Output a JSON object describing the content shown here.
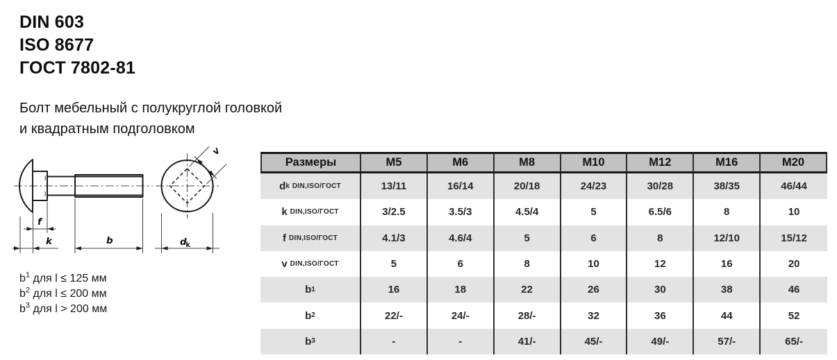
{
  "standards": [
    "DIN 603",
    "ISO 8677",
    "ГОСТ 7802-81"
  ],
  "title": {
    "line1": "Болт мебельный с полукруглой головкой",
    "line2": "и квадратным подголовком"
  },
  "drawing": {
    "labels": {
      "f": "f",
      "k": "k",
      "b": "b",
      "v": "v",
      "dk_main": "d",
      "dk_sub": "k"
    }
  },
  "footnotes": [
    {
      "base": "b",
      "sup": "1",
      "rest": " для l ≤ 125 мм"
    },
    {
      "base": "b",
      "sup": "2",
      "rest": " для l ≤ 200 мм"
    },
    {
      "base": "b",
      "sup": "3",
      "rest": " для l > 200 мм"
    }
  ],
  "table": {
    "header": [
      "Размеры",
      "M5",
      "M6",
      "M8",
      "M10",
      "M12",
      "M16",
      "M20"
    ],
    "rows": [
      {
        "label": {
          "main": "d",
          "sub": "k",
          "suffix": "DIN,ISO/ГОСТ"
        },
        "values": [
          "13/11",
          "16/14",
          "20/18",
          "24/23",
          "30/28",
          "38/35",
          "46/44"
        ]
      },
      {
        "label": {
          "main": "k",
          "sub": "",
          "suffix": "DIN,ISO/ГОСТ"
        },
        "values": [
          "3/2.5",
          "3.5/3",
          "4.5/4",
          "5",
          "6.5/6",
          "8",
          "10"
        ]
      },
      {
        "label": {
          "main": "f",
          "sub": "",
          "suffix": "DIN,ISO/ГОСТ"
        },
        "values": [
          "4.1/3",
          "4.6/4",
          "5",
          "6",
          "8",
          "12/10",
          "15/12"
        ]
      },
      {
        "label": {
          "main": "v",
          "sub": "",
          "suffix": "DIN,ISO/ГОСТ"
        },
        "values": [
          "5",
          "6",
          "8",
          "10",
          "12",
          "16",
          "20"
        ]
      },
      {
        "label": {
          "main": "b",
          "sub": "1",
          "suffix": ""
        },
        "values": [
          "16",
          "18",
          "22",
          "26",
          "30",
          "38",
          "46"
        ]
      },
      {
        "label": {
          "main": "b",
          "sub": "2",
          "suffix": ""
        },
        "values": [
          "22/-",
          "24/-",
          "28/-",
          "32",
          "36",
          "44",
          "52"
        ]
      },
      {
        "label": {
          "main": "b",
          "sub": "3",
          "suffix": ""
        },
        "values": [
          "-",
          "-",
          "41/-",
          "45/-",
          "49/-",
          "57/-",
          "65/-"
        ]
      }
    ]
  },
  "colors": {
    "header_bg": "#c2c2c2",
    "row_alt_bg": "#e3e3e3",
    "line": "#2e2e2e",
    "text": "#262626"
  }
}
